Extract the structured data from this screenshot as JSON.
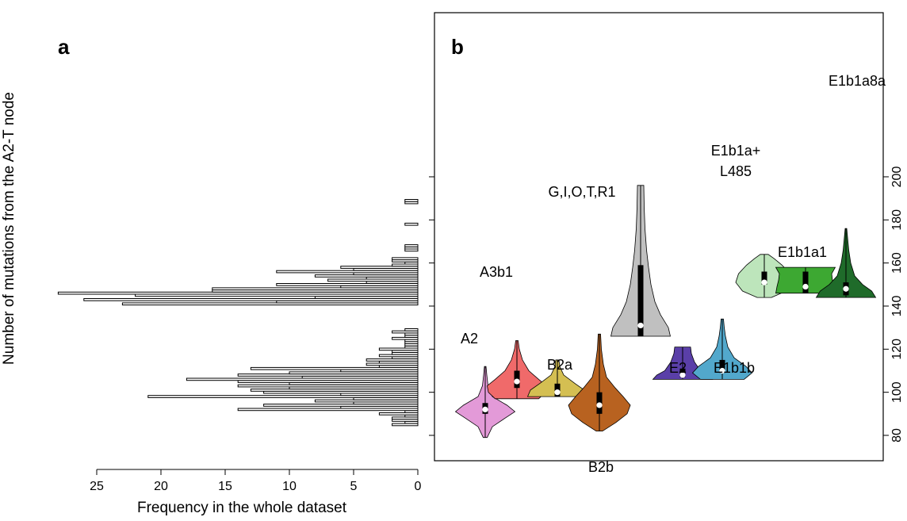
{
  "figure": {
    "panel_a_letter": "a",
    "panel_b_letter": "b"
  },
  "colors": {
    "A2": "#e39ad8",
    "A3b1": "#f06a6a",
    "B2a": "#d4bf52",
    "B2b": "#b86220",
    "G,I,O,T,R1": "#c0c0c0",
    "E2": "#5a3fa8",
    "E1b1b": "#52a8cc",
    "E1b1a+L485": "#bde5bb",
    "E1b1a1": "#3da832",
    "E1b1a8a": "#1f6b2a"
  },
  "chart_data": [
    {
      "type": "bar",
      "orientation": "horizontal",
      "panel": "a",
      "xlabel": "Frequency in the whole dataset",
      "ylabel": "Number of mutations from the A2-T node",
      "x_reversed": true,
      "xlim": [
        0,
        27
      ],
      "xticks": [
        "25",
        "20",
        "15",
        "10",
        "5",
        "0"
      ],
      "ylim": [
        76,
        200
      ],
      "bins": [
        {
          "y": 85,
          "count": 2
        },
        {
          "y": 86,
          "count": 1
        },
        {
          "y": 87,
          "count": 2
        },
        {
          "y": 88,
          "count": 2
        },
        {
          "y": 89,
          "count": 1
        },
        {
          "y": 90,
          "count": 3
        },
        {
          "y": 91,
          "count": 1
        },
        {
          "y": 92,
          "count": 14
        },
        {
          "y": 93,
          "count": 6
        },
        {
          "y": 94,
          "count": 12
        },
        {
          "y": 95,
          "count": 5
        },
        {
          "y": 96,
          "count": 8
        },
        {
          "y": 97,
          "count": 5
        },
        {
          "y": 98,
          "count": 21
        },
        {
          "y": 99,
          "count": 6
        },
        {
          "y": 100,
          "count": 12
        },
        {
          "y": 101,
          "count": 13
        },
        {
          "y": 102,
          "count": 10
        },
        {
          "y": 103,
          "count": 14
        },
        {
          "y": 104,
          "count": 10
        },
        {
          "y": 105,
          "count": 14
        },
        {
          "y": 106,
          "count": 18
        },
        {
          "y": 107,
          "count": 9
        },
        {
          "y": 108,
          "count": 14
        },
        {
          "y": 109,
          "count": 10
        },
        {
          "y": 110,
          "count": 6
        },
        {
          "y": 111,
          "count": 13
        },
        {
          "y": 112,
          "count": 3
        },
        {
          "y": 113,
          "count": 4
        },
        {
          "y": 114,
          "count": 3
        },
        {
          "y": 115,
          "count": 4
        },
        {
          "y": 116,
          "count": 2
        },
        {
          "y": 117,
          "count": 3
        },
        {
          "y": 118,
          "count": 2
        },
        {
          "y": 119,
          "count": 2
        },
        {
          "y": 120,
          "count": 3
        },
        {
          "y": 121,
          "count": 1
        },
        {
          "y": 122,
          "count": 1
        },
        {
          "y": 123,
          "count": 1
        },
        {
          "y": 124,
          "count": 1
        },
        {
          "y": 125,
          "count": 2
        },
        {
          "y": 126,
          "count": 1
        },
        {
          "y": 127,
          "count": 1
        },
        {
          "y": 128,
          "count": 2
        },
        {
          "y": 129,
          "count": 1
        },
        {
          "y": 141,
          "count": 23
        },
        {
          "y": 142,
          "count": 11
        },
        {
          "y": 143,
          "count": 26
        },
        {
          "y": 144,
          "count": 8
        },
        {
          "y": 145,
          "count": 22
        },
        {
          "y": 146,
          "count": 28
        },
        {
          "y": 147,
          "count": 16
        },
        {
          "y": 148,
          "count": 16
        },
        {
          "y": 149,
          "count": 6
        },
        {
          "y": 150,
          "count": 11
        },
        {
          "y": 151,
          "count": 4
        },
        {
          "y": 152,
          "count": 7
        },
        {
          "y": 153,
          "count": 4
        },
        {
          "y": 154,
          "count": 8
        },
        {
          "y": 155,
          "count": 5
        },
        {
          "y": 156,
          "count": 11
        },
        {
          "y": 157,
          "count": 5
        },
        {
          "y": 158,
          "count": 6
        },
        {
          "y": 159,
          "count": 2
        },
        {
          "y": 160,
          "count": 1
        },
        {
          "y": 161,
          "count": 2
        },
        {
          "y": 162,
          "count": 2
        },
        {
          "y": 166,
          "count": 1
        },
        {
          "y": 167,
          "count": 1
        },
        {
          "y": 168,
          "count": 1
        },
        {
          "y": 178,
          "count": 1
        },
        {
          "y": 188,
          "count": 1
        },
        {
          "y": 189,
          "count": 1
        }
      ]
    },
    {
      "type": "violin",
      "panel": "b",
      "ylim": [
        78,
        200
      ],
      "yticks": [
        "80",
        "100",
        "120",
        "140",
        "160",
        "180",
        "200"
      ],
      "grid": false,
      "groups": [
        {
          "name": "A2",
          "label_lines": [
            "A2"
          ],
          "min": 79,
          "max": 112,
          "q1": 90,
          "median": 92,
          "q3": 95,
          "shape": [
            [
              79,
              0.05
            ],
            [
              84,
              0.18
            ],
            [
              88,
              0.5
            ],
            [
              91,
              0.75
            ],
            [
              94,
              0.55
            ],
            [
              98,
              0.18
            ],
            [
              103,
              0.07
            ],
            [
              108,
              0.04
            ],
            [
              112,
              0.02
            ]
          ]
        },
        {
          "name": "A3b1",
          "label_lines": [
            "A3b1"
          ],
          "min": 97,
          "max": 124,
          "q1": 102,
          "median": 105,
          "q3": 110,
          "shape": [
            [
              97,
              0.55
            ],
            [
              100,
              0.72
            ],
            [
              103,
              0.75
            ],
            [
              106,
              0.55
            ],
            [
              110,
              0.3
            ],
            [
              115,
              0.14
            ],
            [
              120,
              0.06
            ],
            [
              124,
              0.03
            ]
          ]
        },
        {
          "name": "B2a",
          "label_lines": [
            "B2a"
          ],
          "min": 98,
          "max": 115,
          "q1": 98,
          "median": 100,
          "q3": 104,
          "shape": [
            [
              98,
              0.75
            ],
            [
              101,
              0.68
            ],
            [
              104,
              0.45
            ],
            [
              108,
              0.16
            ],
            [
              112,
              0.06
            ],
            [
              115,
              0.04
            ]
          ]
        },
        {
          "name": "B2b",
          "label_lines": [
            "B2b"
          ],
          "min": 82,
          "max": 127,
          "q1": 90,
          "median": 94,
          "q3": 100,
          "shape": [
            [
              82,
              0.08
            ],
            [
              86,
              0.42
            ],
            [
              90,
              0.7
            ],
            [
              94,
              0.78
            ],
            [
              98,
              0.6
            ],
            [
              102,
              0.4
            ],
            [
              107,
              0.18
            ],
            [
              113,
              0.1
            ],
            [
              120,
              0.05
            ],
            [
              127,
              0.03
            ]
          ]
        },
        {
          "name": "G,I,O,T,R1",
          "label_lines": [
            "G,I,O,T,R1"
          ],
          "min": 126,
          "max": 196,
          "q1": 126,
          "median": 131,
          "q3": 159,
          "shape": [
            [
              126,
              0.75
            ],
            [
              130,
              0.7
            ],
            [
              136,
              0.5
            ],
            [
              142,
              0.36
            ],
            [
              150,
              0.26
            ],
            [
              158,
              0.2
            ],
            [
              166,
              0.15
            ],
            [
              176,
              0.11
            ],
            [
              186,
              0.09
            ],
            [
              196,
              0.08
            ]
          ]
        },
        {
          "name": "E2",
          "label_lines": [
            "E2"
          ],
          "min": 106,
          "max": 121,
          "q1": 107,
          "median": 108,
          "q3": 111,
          "shape": [
            [
              106,
              0.75
            ],
            [
              108,
              0.65
            ],
            [
              110,
              0.45
            ],
            [
              114,
              0.3
            ],
            [
              118,
              0.22
            ],
            [
              121,
              0.2
            ]
          ]
        },
        {
          "name": "E1b1b",
          "label_lines": [
            "E1b1b"
          ],
          "min": 106,
          "max": 134,
          "q1": 109,
          "median": 110,
          "q3": 115,
          "shape": [
            [
              106,
              0.55
            ],
            [
              109,
              0.75
            ],
            [
              112,
              0.6
            ],
            [
              116,
              0.3
            ],
            [
              121,
              0.14
            ],
            [
              126,
              0.08
            ],
            [
              130,
              0.05
            ],
            [
              134,
              0.03
            ]
          ]
        },
        {
          "name": "E1b1a+L485",
          "label_lines": [
            "E1b1a+",
            "L485"
          ],
          "min": 144,
          "max": 164,
          "q1": 150,
          "median": 151,
          "q3": 156,
          "shape": [
            [
              144,
              0.18
            ],
            [
              147,
              0.55
            ],
            [
              151,
              0.72
            ],
            [
              155,
              0.65
            ],
            [
              159,
              0.45
            ],
            [
              162,
              0.25
            ],
            [
              164,
              0.1
            ]
          ]
        },
        {
          "name": "E1b1a1",
          "label_lines": [
            "E1b1a1"
          ],
          "min": 146,
          "max": 158,
          "q1": 146,
          "median": 149,
          "q3": 156,
          "shape": [
            [
              146,
              0.75
            ],
            [
              149,
              0.72
            ],
            [
              152,
              0.68
            ],
            [
              155,
              0.66
            ],
            [
              158,
              0.75
            ]
          ]
        },
        {
          "name": "E1b1a8a",
          "label_lines": [
            "E1b1a8a"
          ],
          "min": 144,
          "max": 176,
          "q1": 145,
          "median": 148,
          "q3": 151,
          "shape": [
            [
              144,
              0.75
            ],
            [
              147,
              0.65
            ],
            [
              150,
              0.42
            ],
            [
              154,
              0.22
            ],
            [
              160,
              0.12
            ],
            [
              166,
              0.07
            ],
            [
              172,
              0.04
            ],
            [
              176,
              0.02
            ]
          ]
        }
      ]
    }
  ]
}
